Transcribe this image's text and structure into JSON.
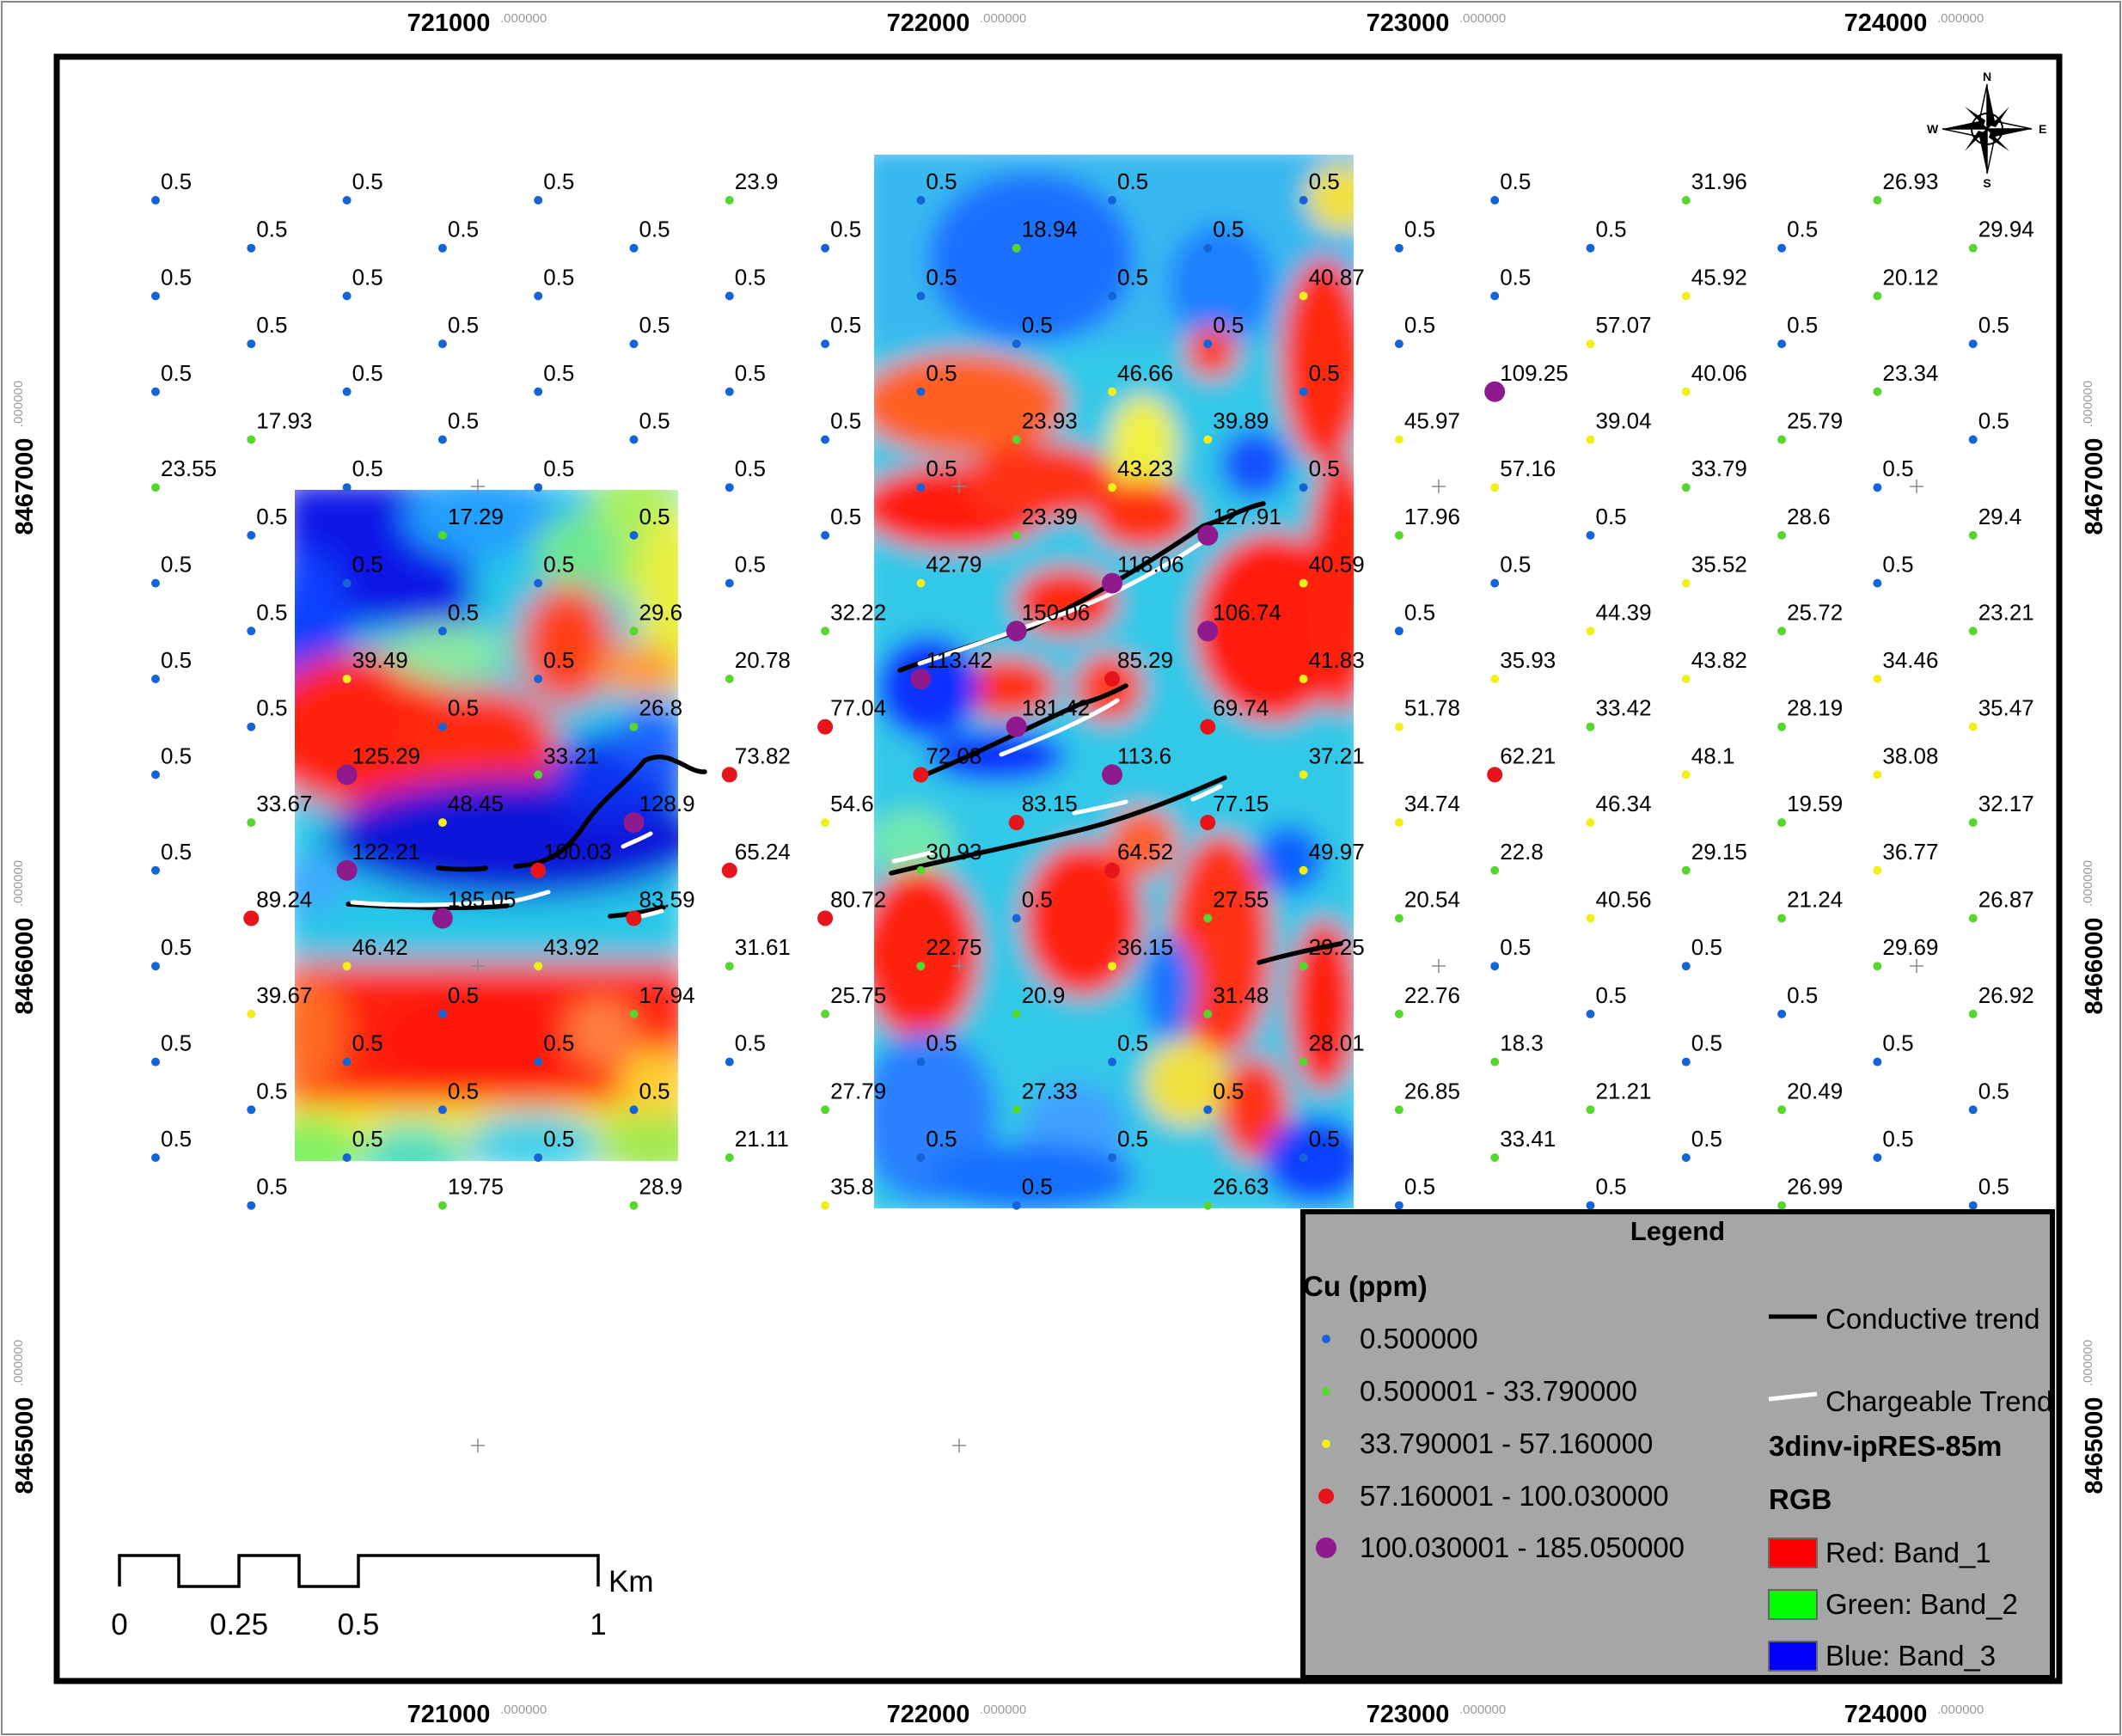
{
  "map": {
    "grid_x_labels": [
      {
        "value": "721000",
        "suffix": ".000000"
      },
      {
        "value": "722000",
        "suffix": ".000000"
      },
      {
        "value": "723000",
        "suffix": ".000000"
      },
      {
        "value": "724000",
        "suffix": ".000000"
      }
    ],
    "grid_y_labels": [
      {
        "value": "8467000",
        "suffix": ".000000"
      },
      {
        "value": "8466000",
        "suffix": ".000000"
      },
      {
        "value": "8465000",
        "suffix": ".000000"
      }
    ]
  },
  "compass": {
    "n": "N",
    "s": "S",
    "e": "E",
    "w": "W"
  },
  "legend": {
    "title": "Legend",
    "cu_heading": "Cu (ppm)",
    "cu_classes": [
      {
        "label": "0.500000",
        "color": "#1464d8"
      },
      {
        "label": "0.500001 - 33.790000",
        "color": "#56d62e"
      },
      {
        "label": "33.790001 - 57.160000",
        "color": "#f2ee1a"
      },
      {
        "label": "57.160001 - 100.030000",
        "color": "#e8141c"
      },
      {
        "label": "100.030001 - 185.050000",
        "color": "#8e1a8e"
      }
    ],
    "conductive_label": "Conductive trend",
    "chargeable_label": "Chargeable Trend",
    "raster_name": "3dinv-ipRES-85m",
    "rgb_heading": "RGB",
    "bands": [
      {
        "label": "Red:   Band_1",
        "color": "#ff0000"
      },
      {
        "label": "Green: Band_2",
        "color": "#00ff00"
      },
      {
        "label": "Blue:   Band_3",
        "color": "#0000ff"
      }
    ]
  },
  "scalebar": {
    "ticks": [
      "0",
      "0.25",
      "0.5",
      "1"
    ],
    "unit": "Km"
  },
  "samples": [
    {
      "c": 0,
      "r": 0,
      "v": "0.5"
    },
    {
      "c": 2,
      "r": 0,
      "v": "0.5"
    },
    {
      "c": 4,
      "r": 0,
      "v": "0.5"
    },
    {
      "c": 6,
      "r": 0,
      "v": "23.9"
    },
    {
      "c": 8,
      "r": 0,
      "v": "0.5"
    },
    {
      "c": 10,
      "r": 0,
      "v": "0.5"
    },
    {
      "c": 12,
      "r": 0,
      "v": "0.5"
    },
    {
      "c": 14,
      "r": 0,
      "v": "0.5"
    },
    {
      "c": 16,
      "r": 0,
      "v": "31.96"
    },
    {
      "c": 18,
      "r": 0,
      "v": "26.93"
    },
    {
      "c": 1,
      "r": 1,
      "v": "0.5"
    },
    {
      "c": 3,
      "r": 1,
      "v": "0.5"
    },
    {
      "c": 5,
      "r": 1,
      "v": "0.5"
    },
    {
      "c": 7,
      "r": 1,
      "v": "0.5"
    },
    {
      "c": 9,
      "r": 1,
      "v": "18.94"
    },
    {
      "c": 11,
      "r": 1,
      "v": "0.5"
    },
    {
      "c": 13,
      "r": 1,
      "v": "0.5"
    },
    {
      "c": 15,
      "r": 1,
      "v": "0.5"
    },
    {
      "c": 17,
      "r": 1,
      "v": "0.5"
    },
    {
      "c": 19,
      "r": 1,
      "v": "29.94"
    },
    {
      "c": 0,
      "r": 2,
      "v": "0.5"
    },
    {
      "c": 2,
      "r": 2,
      "v": "0.5"
    },
    {
      "c": 4,
      "r": 2,
      "v": "0.5"
    },
    {
      "c": 6,
      "r": 2,
      "v": "0.5"
    },
    {
      "c": 8,
      "r": 2,
      "v": "0.5"
    },
    {
      "c": 10,
      "r": 2,
      "v": "0.5"
    },
    {
      "c": 12,
      "r": 2,
      "v": "40.87"
    },
    {
      "c": 14,
      "r": 2,
      "v": "0.5"
    },
    {
      "c": 16,
      "r": 2,
      "v": "45.92"
    },
    {
      "c": 18,
      "r": 2,
      "v": "20.12"
    },
    {
      "c": 1,
      "r": 3,
      "v": "0.5"
    },
    {
      "c": 3,
      "r": 3,
      "v": "0.5"
    },
    {
      "c": 5,
      "r": 3,
      "v": "0.5"
    },
    {
      "c": 7,
      "r": 3,
      "v": "0.5"
    },
    {
      "c": 9,
      "r": 3,
      "v": "0.5"
    },
    {
      "c": 11,
      "r": 3,
      "v": "0.5"
    },
    {
      "c": 13,
      "r": 3,
      "v": "0.5"
    },
    {
      "c": 15,
      "r": 3,
      "v": "57.07"
    },
    {
      "c": 17,
      "r": 3,
      "v": "0.5"
    },
    {
      "c": 19,
      "r": 3,
      "v": "0.5"
    },
    {
      "c": 0,
      "r": 4,
      "v": "0.5"
    },
    {
      "c": 2,
      "r": 4,
      "v": "0.5"
    },
    {
      "c": 4,
      "r": 4,
      "v": "0.5"
    },
    {
      "c": 6,
      "r": 4,
      "v": "0.5"
    },
    {
      "c": 8,
      "r": 4,
      "v": "0.5"
    },
    {
      "c": 10,
      "r": 4,
      "v": "46.66"
    },
    {
      "c": 12,
      "r": 4,
      "v": "0.5"
    },
    {
      "c": 14,
      "r": 4,
      "v": "109.25"
    },
    {
      "c": 16,
      "r": 4,
      "v": "40.06"
    },
    {
      "c": 18,
      "r": 4,
      "v": "23.34"
    },
    {
      "c": 1,
      "r": 5,
      "v": "17.93"
    },
    {
      "c": 3,
      "r": 5,
      "v": "0.5"
    },
    {
      "c": 5,
      "r": 5,
      "v": "0.5"
    },
    {
      "c": 7,
      "r": 5,
      "v": "0.5"
    },
    {
      "c": 9,
      "r": 5,
      "v": "23.93"
    },
    {
      "c": 11,
      "r": 5,
      "v": "39.89"
    },
    {
      "c": 13,
      "r": 5,
      "v": "45.97"
    },
    {
      "c": 15,
      "r": 5,
      "v": "39.04"
    },
    {
      "c": 17,
      "r": 5,
      "v": "25.79"
    },
    {
      "c": 19,
      "r": 5,
      "v": "0.5"
    },
    {
      "c": 0,
      "r": 6,
      "v": "23.55"
    },
    {
      "c": 2,
      "r": 6,
      "v": "0.5"
    },
    {
      "c": 4,
      "r": 6,
      "v": "0.5"
    },
    {
      "c": 6,
      "r": 6,
      "v": "0.5"
    },
    {
      "c": 8,
      "r": 6,
      "v": "0.5"
    },
    {
      "c": 10,
      "r": 6,
      "v": "43.23"
    },
    {
      "c": 12,
      "r": 6,
      "v": "0.5"
    },
    {
      "c": 14,
      "r": 6,
      "v": "57.16"
    },
    {
      "c": 16,
      "r": 6,
      "v": "33.79"
    },
    {
      "c": 18,
      "r": 6,
      "v": "0.5"
    },
    {
      "c": 1,
      "r": 7,
      "v": "0.5"
    },
    {
      "c": 3,
      "r": 7,
      "v": "17.29"
    },
    {
      "c": 5,
      "r": 7,
      "v": "0.5"
    },
    {
      "c": 7,
      "r": 7,
      "v": "0.5"
    },
    {
      "c": 9,
      "r": 7,
      "v": "23.39"
    },
    {
      "c": 11,
      "r": 7,
      "v": "127.91"
    },
    {
      "c": 13,
      "r": 7,
      "v": "17.96"
    },
    {
      "c": 15,
      "r": 7,
      "v": "0.5"
    },
    {
      "c": 17,
      "r": 7,
      "v": "28.6"
    },
    {
      "c": 19,
      "r": 7,
      "v": "29.4"
    },
    {
      "c": 0,
      "r": 8,
      "v": "0.5"
    },
    {
      "c": 2,
      "r": 8,
      "v": "0.5"
    },
    {
      "c": 4,
      "r": 8,
      "v": "0.5"
    },
    {
      "c": 6,
      "r": 8,
      "v": "0.5"
    },
    {
      "c": 8,
      "r": 8,
      "v": "42.79"
    },
    {
      "c": 10,
      "r": 8,
      "v": "118.06"
    },
    {
      "c": 12,
      "r": 8,
      "v": "40.59"
    },
    {
      "c": 14,
      "r": 8,
      "v": "0.5"
    },
    {
      "c": 16,
      "r": 8,
      "v": "35.52"
    },
    {
      "c": 18,
      "r": 8,
      "v": "0.5"
    },
    {
      "c": 1,
      "r": 9,
      "v": "0.5"
    },
    {
      "c": 3,
      "r": 9,
      "v": "0.5"
    },
    {
      "c": 5,
      "r": 9,
      "v": "29.6"
    },
    {
      "c": 7,
      "r": 9,
      "v": "32.22"
    },
    {
      "c": 9,
      "r": 9,
      "v": "150.06"
    },
    {
      "c": 11,
      "r": 9,
      "v": "106.74"
    },
    {
      "c": 13,
      "r": 9,
      "v": "0.5"
    },
    {
      "c": 15,
      "r": 9,
      "v": "44.39"
    },
    {
      "c": 17,
      "r": 9,
      "v": "25.72"
    },
    {
      "c": 19,
      "r": 9,
      "v": "23.21"
    },
    {
      "c": 0,
      "r": 10,
      "v": "0.5"
    },
    {
      "c": 2,
      "r": 10,
      "v": "39.49"
    },
    {
      "c": 4,
      "r": 10,
      "v": "0.5"
    },
    {
      "c": 6,
      "r": 10,
      "v": "20.78"
    },
    {
      "c": 8,
      "r": 10,
      "v": "113.42"
    },
    {
      "c": 10,
      "r": 10,
      "v": "85.29"
    },
    {
      "c": 12,
      "r": 10,
      "v": "41.83"
    },
    {
      "c": 14,
      "r": 10,
      "v": "35.93"
    },
    {
      "c": 16,
      "r": 10,
      "v": "43.82"
    },
    {
      "c": 18,
      "r": 10,
      "v": "34.46"
    },
    {
      "c": 1,
      "r": 11,
      "v": "0.5"
    },
    {
      "c": 3,
      "r": 11,
      "v": "0.5"
    },
    {
      "c": 5,
      "r": 11,
      "v": "26.8"
    },
    {
      "c": 7,
      "r": 11,
      "v": "77.04"
    },
    {
      "c": 9,
      "r": 11,
      "v": "181.42"
    },
    {
      "c": 11,
      "r": 11,
      "v": "69.74"
    },
    {
      "c": 13,
      "r": 11,
      "v": "51.78"
    },
    {
      "c": 15,
      "r": 11,
      "v": "33.42"
    },
    {
      "c": 17,
      "r": 11,
      "v": "28.19"
    },
    {
      "c": 19,
      "r": 11,
      "v": "35.47"
    },
    {
      "c": 0,
      "r": 12,
      "v": "0.5"
    },
    {
      "c": 2,
      "r": 12,
      "v": "125.29"
    },
    {
      "c": 4,
      "r": 12,
      "v": "33.21"
    },
    {
      "c": 6,
      "r": 12,
      "v": "73.82"
    },
    {
      "c": 8,
      "r": 12,
      "v": "72.08"
    },
    {
      "c": 10,
      "r": 12,
      "v": "113.6"
    },
    {
      "c": 12,
      "r": 12,
      "v": "37.21"
    },
    {
      "c": 14,
      "r": 12,
      "v": "62.21"
    },
    {
      "c": 16,
      "r": 12,
      "v": "48.1"
    },
    {
      "c": 18,
      "r": 12,
      "v": "38.08"
    },
    {
      "c": 1,
      "r": 13,
      "v": "33.67"
    },
    {
      "c": 3,
      "r": 13,
      "v": "48.45"
    },
    {
      "c": 5,
      "r": 13,
      "v": "128.9"
    },
    {
      "c": 7,
      "r": 13,
      "v": "54.6"
    },
    {
      "c": 9,
      "r": 13,
      "v": "83.15"
    },
    {
      "c": 11,
      "r": 13,
      "v": "77.15"
    },
    {
      "c": 13,
      "r": 13,
      "v": "34.74"
    },
    {
      "c": 15,
      "r": 13,
      "v": "46.34"
    },
    {
      "c": 17,
      "r": 13,
      "v": "19.59"
    },
    {
      "c": 19,
      "r": 13,
      "v": "32.17"
    },
    {
      "c": 0,
      "r": 14,
      "v": "0.5"
    },
    {
      "c": 2,
      "r": 14,
      "v": "122.21"
    },
    {
      "c": 4,
      "r": 14,
      "v": "100.03"
    },
    {
      "c": 6,
      "r": 14,
      "v": "65.24"
    },
    {
      "c": 8,
      "r": 14,
      "v": "30.93"
    },
    {
      "c": 10,
      "r": 14,
      "v": "64.52"
    },
    {
      "c": 12,
      "r": 14,
      "v": "49.97"
    },
    {
      "c": 14,
      "r": 14,
      "v": "22.8"
    },
    {
      "c": 16,
      "r": 14,
      "v": "29.15"
    },
    {
      "c": 18,
      "r": 14,
      "v": "36.77"
    },
    {
      "c": 1,
      "r": 15,
      "v": "89.24"
    },
    {
      "c": 3,
      "r": 15,
      "v": "185.05"
    },
    {
      "c": 5,
      "r": 15,
      "v": "83.59"
    },
    {
      "c": 7,
      "r": 15,
      "v": "80.72"
    },
    {
      "c": 9,
      "r": 15,
      "v": "0.5"
    },
    {
      "c": 11,
      "r": 15,
      "v": "27.55"
    },
    {
      "c": 13,
      "r": 15,
      "v": "20.54"
    },
    {
      "c": 15,
      "r": 15,
      "v": "40.56"
    },
    {
      "c": 17,
      "r": 15,
      "v": "21.24"
    },
    {
      "c": 19,
      "r": 15,
      "v": "26.87"
    },
    {
      "c": 0,
      "r": 16,
      "v": "0.5"
    },
    {
      "c": 2,
      "r": 16,
      "v": "46.42"
    },
    {
      "c": 4,
      "r": 16,
      "v": "43.92"
    },
    {
      "c": 6,
      "r": 16,
      "v": "31.61"
    },
    {
      "c": 8,
      "r": 16,
      "v": "22.75"
    },
    {
      "c": 10,
      "r": 16,
      "v": "36.15"
    },
    {
      "c": 12,
      "r": 16,
      "v": "29.25"
    },
    {
      "c": 14,
      "r": 16,
      "v": "0.5"
    },
    {
      "c": 16,
      "r": 16,
      "v": "0.5"
    },
    {
      "c": 18,
      "r": 16,
      "v": "29.69"
    },
    {
      "c": 1,
      "r": 17,
      "v": "39.67"
    },
    {
      "c": 3,
      "r": 17,
      "v": "0.5"
    },
    {
      "c": 5,
      "r": 17,
      "v": "17.94"
    },
    {
      "c": 7,
      "r": 17,
      "v": "25.75"
    },
    {
      "c": 9,
      "r": 17,
      "v": "20.9"
    },
    {
      "c": 11,
      "r": 17,
      "v": "31.48"
    },
    {
      "c": 13,
      "r": 17,
      "v": "22.76"
    },
    {
      "c": 15,
      "r": 17,
      "v": "0.5"
    },
    {
      "c": 17,
      "r": 17,
      "v": "0.5"
    },
    {
      "c": 19,
      "r": 17,
      "v": "26.92"
    },
    {
      "c": 0,
      "r": 18,
      "v": "0.5"
    },
    {
      "c": 2,
      "r": 18,
      "v": "0.5"
    },
    {
      "c": 4,
      "r": 18,
      "v": "0.5"
    },
    {
      "c": 6,
      "r": 18,
      "v": "0.5"
    },
    {
      "c": 8,
      "r": 18,
      "v": "0.5"
    },
    {
      "c": 10,
      "r": 18,
      "v": "0.5"
    },
    {
      "c": 12,
      "r": 18,
      "v": "28.01"
    },
    {
      "c": 14,
      "r": 18,
      "v": "18.3"
    },
    {
      "c": 16,
      "r": 18,
      "v": "0.5"
    },
    {
      "c": 18,
      "r": 18,
      "v": "0.5"
    },
    {
      "c": 1,
      "r": 19,
      "v": "0.5"
    },
    {
      "c": 3,
      "r": 19,
      "v": "0.5"
    },
    {
      "c": 5,
      "r": 19,
      "v": "0.5"
    },
    {
      "c": 7,
      "r": 19,
      "v": "27.79"
    },
    {
      "c": 9,
      "r": 19,
      "v": "27.33"
    },
    {
      "c": 11,
      "r": 19,
      "v": "0.5"
    },
    {
      "c": 13,
      "r": 19,
      "v": "26.85"
    },
    {
      "c": 15,
      "r": 19,
      "v": "21.21"
    },
    {
      "c": 17,
      "r": 19,
      "v": "20.49"
    },
    {
      "c": 19,
      "r": 19,
      "v": "0.5"
    },
    {
      "c": 0,
      "r": 20,
      "v": "0.5"
    },
    {
      "c": 2,
      "r": 20,
      "v": "0.5"
    },
    {
      "c": 4,
      "r": 20,
      "v": "0.5"
    },
    {
      "c": 6,
      "r": 20,
      "v": "21.11"
    },
    {
      "c": 8,
      "r": 20,
      "v": "0.5"
    },
    {
      "c": 10,
      "r": 20,
      "v": "0.5"
    },
    {
      "c": 12,
      "r": 20,
      "v": "0.5"
    },
    {
      "c": 14,
      "r": 20,
      "v": "33.41"
    },
    {
      "c": 16,
      "r": 20,
      "v": "0.5"
    },
    {
      "c": 18,
      "r": 20,
      "v": "0.5"
    },
    {
      "c": 1,
      "r": 21,
      "v": "0.5"
    },
    {
      "c": 3,
      "r": 21,
      "v": "19.75"
    },
    {
      "c": 5,
      "r": 21,
      "v": "28.9"
    },
    {
      "c": 7,
      "r": 21,
      "v": "35.8"
    },
    {
      "c": 9,
      "r": 21,
      "v": "0.5"
    },
    {
      "c": 11,
      "r": 21,
      "v": "26.63"
    },
    {
      "c": 13,
      "r": 21,
      "v": "0.5"
    },
    {
      "c": 15,
      "r": 21,
      "v": "0.5"
    },
    {
      "c": 17,
      "r": 21,
      "v": "26.99"
    },
    {
      "c": 19,
      "r": 21,
      "v": "0.5"
    }
  ]
}
